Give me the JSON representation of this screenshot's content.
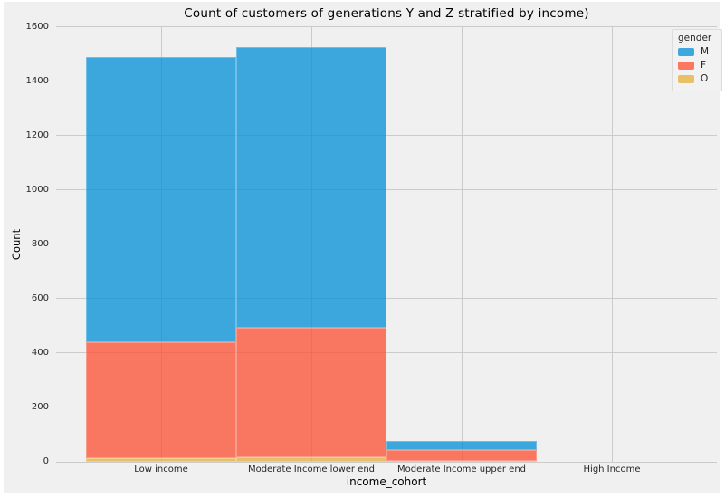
{
  "chart_data": {
    "type": "bar",
    "stacked": true,
    "title": "Count of customers of generations Y and Z stratified by income)",
    "xlabel": "income_cohort",
    "ylabel": "Count",
    "categories": [
      "Low income",
      "Moderate Income lower end",
      "Moderate Income upper end",
      "High Income"
    ],
    "series": [
      {
        "name": "M",
        "color": "#008fd5",
        "values": [
          1050,
          1034,
          35,
          0
        ]
      },
      {
        "name": "F",
        "color": "#fc4f30",
        "values": [
          425,
          476,
          40,
          0
        ]
      },
      {
        "name": "O",
        "color": "#e5ae38",
        "values": [
          15,
          17,
          3,
          0
        ]
      }
    ],
    "stack_order_bottom_to_top": [
      "O",
      "F",
      "M"
    ],
    "totals": [
      1490,
      1527,
      78,
      0
    ],
    "ylim": [
      0,
      1603
    ],
    "yticks": [
      0,
      200,
      400,
      600,
      800,
      1000,
      1200,
      1400,
      1600
    ],
    "grid": true,
    "bar_alpha": 0.75,
    "background": "#f0f0f0",
    "grid_color": "#cbcbcb",
    "legend": {
      "title": "gender",
      "position": "upper right",
      "entries": [
        "M",
        "F",
        "O"
      ]
    }
  }
}
